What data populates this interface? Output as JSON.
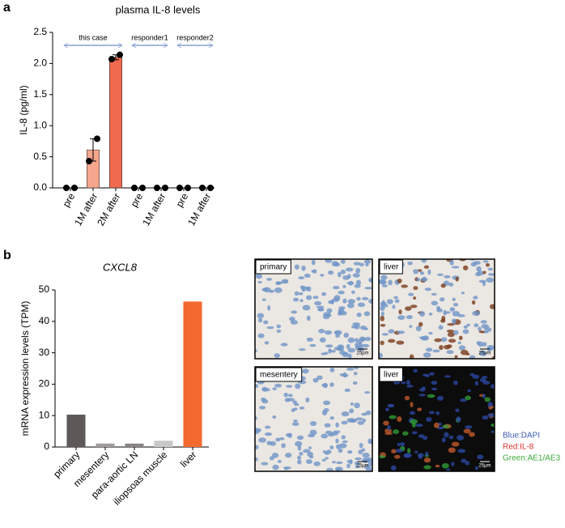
{
  "panel_labels": [
    "a",
    "b"
  ],
  "chart_data": [
    {
      "type": "bar",
      "title": "plasma IL-8 levels",
      "ylabel": "IL-8 (pg/ml)",
      "categories": [
        "pre",
        "1M after",
        "2M after",
        "pre",
        "1M after",
        "pre",
        "1M after"
      ],
      "values": [
        0,
        0.61,
        2.1,
        0,
        0,
        0,
        0
      ],
      "errors": [
        null,
        0.18,
        0.04,
        null,
        null,
        null,
        null
      ],
      "points": [
        [
          0,
          0
        ],
        [
          0.43,
          0.79
        ],
        [
          2.07,
          2.14
        ],
        [
          0,
          0
        ],
        [
          0,
          0
        ],
        [
          0,
          0
        ],
        [
          0,
          0
        ]
      ],
      "colors": [
        "#f6a68c",
        "#f6a68c",
        "#ef6a4e",
        "#f6a68c",
        "#f6a68c",
        "#f6a68c",
        "#f6a68c"
      ],
      "groups": [
        {
          "name": "this case",
          "size": 3
        },
        {
          "name": "responder1",
          "size": 2
        },
        {
          "name": "responder2",
          "size": 2
        }
      ],
      "ylim": [
        0,
        2.5
      ],
      "yticks": [
        {
          "value": 0,
          "label": "0.0"
        },
        0.5,
        {
          "value": 1,
          "label": "1.0"
        },
        1.5,
        {
          "value": 2,
          "label": "2.0"
        },
        2.5
      ]
    },
    {
      "type": "bar",
      "title": "CXCL8",
      "ylabel": "mRNA expression levels (TPM)",
      "categories": [
        "primary",
        "mesentery",
        "para-aortic LN",
        "iliopsoas muscle",
        "liver"
      ],
      "values": [
        10.3,
        1.1,
        1.1,
        2.0,
        46.3
      ],
      "colors": [
        "#5f5858",
        "#a09a9a",
        "#8a8585",
        "#c8c8c8",
        "#f26a2e"
      ],
      "ylim": [
        0,
        50
      ],
      "yticks": [
        0,
        10,
        20,
        30,
        40,
        50
      ]
    }
  ],
  "images": [
    {
      "label": "primary",
      "scale_bar": "25μm"
    },
    {
      "label": "liver",
      "scale_bar": "25μm"
    },
    {
      "label": "mesentery",
      "scale_bar": "25μm"
    },
    {
      "label": "liver",
      "scale_bar": "25μm"
    }
  ],
  "legend": [
    {
      "text": "Blue:DAPI",
      "color": "#3b5bb5"
    },
    {
      "text": "Red:IL-8",
      "color": "#e03030"
    },
    {
      "text": "Green:AE1/AE3",
      "color": "#3aa83a"
    }
  ]
}
